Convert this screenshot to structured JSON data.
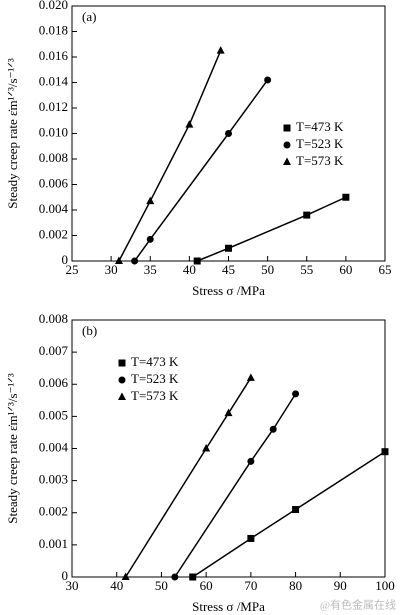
{
  "chart_data": [
    {
      "type": "scatter",
      "panel_label": "(a)",
      "xlabel": "Stress σ /MPa",
      "ylabel": "Steady creep rate ε̇m¹ᐟ³/s⁻¹ᐟ³",
      "xlim": [
        25,
        65
      ],
      "xticks": [
        25,
        30,
        35,
        40,
        45,
        50,
        55,
        60,
        65
      ],
      "ylim": [
        0,
        0.02
      ],
      "yticks": [
        0,
        0.002,
        0.004,
        0.006,
        0.008,
        {
          "value": 0.01,
          "label": "0.010"
        },
        0.012,
        0.014,
        0.016,
        0.018,
        {
          "value": 0.02,
          "label": "0.020"
        }
      ],
      "legend": "right",
      "grid": false,
      "series": [
        {
          "name": "T=473 K",
          "color": "#000000",
          "marker": "square",
          "x": [
            41,
            45,
            55,
            60
          ],
          "values": [
            0,
            0.001,
            0.0036,
            0.005
          ]
        },
        {
          "name": "T=523 K",
          "color": "#000000",
          "marker": "circle",
          "x": [
            33,
            35,
            45,
            50
          ],
          "values": [
            0,
            0.0017,
            0.01,
            0.0142
          ]
        },
        {
          "name": "T=573 K",
          "color": "#000000",
          "marker": "triangle",
          "x": [
            31,
            35,
            40,
            44
          ],
          "values": [
            0,
            0.0047,
            0.0107,
            0.0165
          ]
        }
      ]
    },
    {
      "type": "scatter",
      "panel_label": "(b)",
      "xlabel": "Stress σ /MPa",
      "ylabel": "Steady creep rate ε̇m¹ᐟ³/s⁻¹ᐟ³",
      "xlim": [
        30,
        100
      ],
      "xticks": [
        30,
        40,
        50,
        60,
        70,
        80,
        90,
        100
      ],
      "ylim": [
        0,
        0.008
      ],
      "yticks": [
        0,
        0.001,
        0.002,
        0.003,
        0.004,
        0.005,
        0.006,
        0.007,
        0.008
      ],
      "legend": "left",
      "grid": false,
      "watermark": "@有色金属在线",
      "series": [
        {
          "name": "T=473 K",
          "color": "#000000",
          "marker": "square",
          "x": [
            57,
            70,
            80,
            100
          ],
          "values": [
            0,
            0.0012,
            0.0021,
            0.0039
          ]
        },
        {
          "name": "T=523 K",
          "color": "#000000",
          "marker": "circle",
          "x": [
            53,
            70,
            75,
            80
          ],
          "values": [
            0,
            0.0036,
            0.0046,
            0.0057
          ]
        },
        {
          "name": "T=573 K",
          "color": "#000000",
          "marker": "triangle",
          "x": [
            42,
            60,
            65,
            70
          ],
          "values": [
            0,
            0.004,
            0.0051,
            0.0062
          ]
        }
      ]
    }
  ]
}
